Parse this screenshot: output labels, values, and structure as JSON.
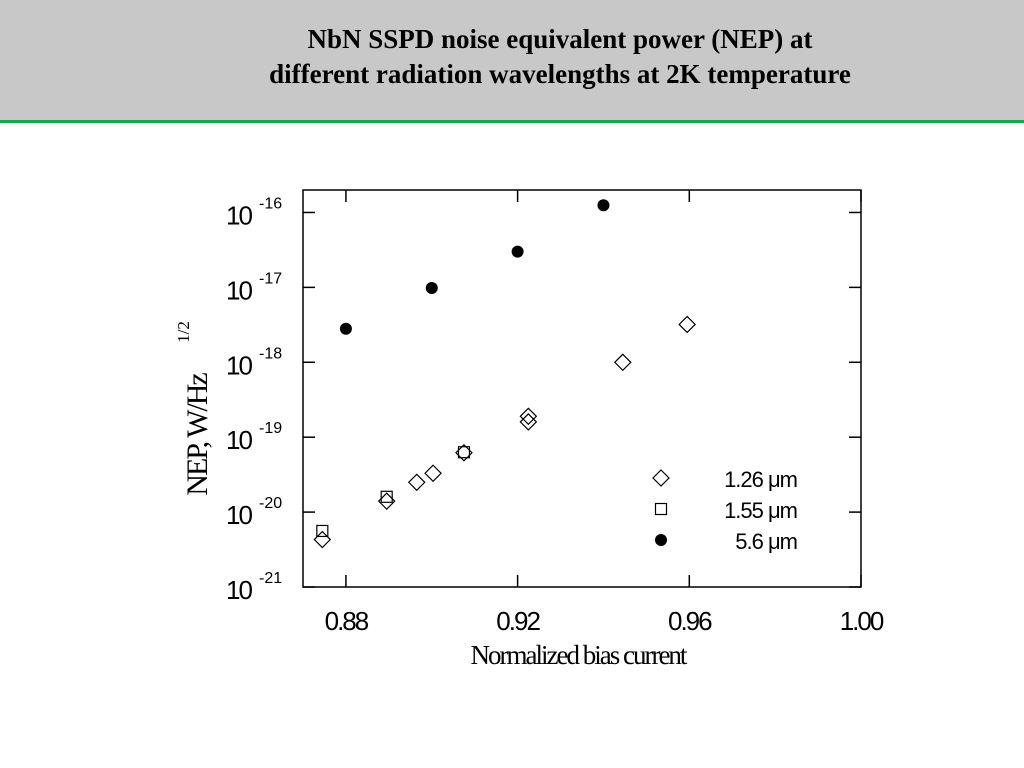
{
  "header": {
    "title_line1": "NbN SSPD noise equivalent power (NEP) at",
    "title_line2": "different radiation wavelengths at 2K temperature",
    "bar_color": "#c8c8c8",
    "rule_color": "#1aa84a"
  },
  "chart_data": {
    "type": "scatter",
    "xlabel": "Normalized bias current",
    "ylabel_main": "NEP, W/Hz",
    "ylabel_sup": "1/2",
    "xlim": [
      0.87,
      1.0
    ],
    "ylim_log10": [
      -21,
      -15.7
    ],
    "y_scale": "log",
    "grid": false,
    "legend_position": "bottom-right",
    "x_ticks": [
      {
        "value": 0.88,
        "label": "0.88"
      },
      {
        "value": 0.92,
        "label": "0.92"
      },
      {
        "value": 0.96,
        "label": "0.96"
      },
      {
        "value": 1.0,
        "label": "1.00"
      }
    ],
    "y_ticks": [
      {
        "exp": -16,
        "base": "10",
        "sup": "-16"
      },
      {
        "exp": -17,
        "base": "10",
        "sup": "-17"
      },
      {
        "exp": -18,
        "base": "10",
        "sup": "-18"
      },
      {
        "exp": -19,
        "base": "10",
        "sup": "-19"
      },
      {
        "exp": -20,
        "base": "10",
        "sup": "-20"
      },
      {
        "exp": -21,
        "base": "10",
        "sup": "-21"
      }
    ],
    "series": [
      {
        "name": "1.26 μm",
        "marker": "diamond",
        "points": [
          {
            "x": 0.8745,
            "y": 4.3e-21
          },
          {
            "x": 0.8895,
            "y": 1.4e-20
          },
          {
            "x": 0.8965,
            "y": 2.5e-20
          },
          {
            "x": 0.9003,
            "y": 3.3e-20
          },
          {
            "x": 0.9075,
            "y": 6.2e-20
          },
          {
            "x": 0.9225,
            "y": 1.9e-19
          },
          {
            "x": 0.9225,
            "y": 1.6e-19
          },
          {
            "x": 0.9445,
            "y": 1e-18
          },
          {
            "x": 0.9595,
            "y": 3.2e-18
          }
        ]
      },
      {
        "name": "1.55 μm",
        "marker": "square",
        "points": [
          {
            "x": 0.8745,
            "y": 5.6e-21
          },
          {
            "x": 0.8895,
            "y": 1.6e-20
          },
          {
            "x": 0.9075,
            "y": 6.3e-20
          }
        ]
      },
      {
        "name": "5.6 μm",
        "marker": "circle",
        "points": [
          {
            "x": 0.88,
            "y": 2.8e-18
          },
          {
            "x": 0.9,
            "y": 9.8e-18
          },
          {
            "x": 0.92,
            "y": 3e-17
          },
          {
            "x": 0.94,
            "y": 1.25e-16
          }
        ]
      }
    ]
  }
}
